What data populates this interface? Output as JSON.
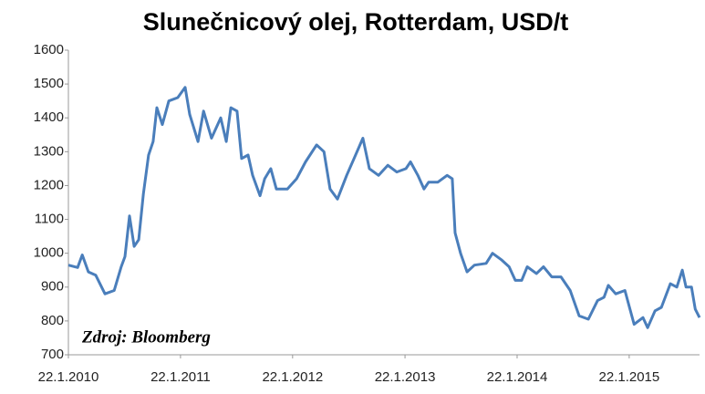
{
  "chart_data": {
    "type": "line",
    "title": "Slunečnicový olej, Rotterdam, USD/t",
    "annotation": "Zdroj: Bloomberg",
    "x": [
      "2010-01-22",
      "2010-02-21",
      "2010-03-08",
      "2010-03-28",
      "2010-04-21",
      "2010-05-21",
      "2010-06-20",
      "2010-07-13",
      "2010-07-25",
      "2010-08-09",
      "2010-08-24",
      "2010-09-08",
      "2010-09-23",
      "2010-10-10",
      "2010-10-25",
      "2010-11-06",
      "2010-11-24",
      "2010-12-15",
      "2011-01-13",
      "2011-02-06",
      "2011-02-21",
      "2011-03-20",
      "2011-04-07",
      "2011-05-03",
      "2011-06-02",
      "2011-06-20",
      "2011-07-05",
      "2011-07-25",
      "2011-08-09",
      "2011-08-30",
      "2011-09-14",
      "2011-10-08",
      "2011-10-23",
      "2011-11-12",
      "2011-11-30",
      "2012-01-05",
      "2012-02-04",
      "2012-03-04",
      "2012-04-09",
      "2012-05-03",
      "2012-05-23",
      "2012-06-16",
      "2012-07-16",
      "2012-08-09",
      "2012-09-07",
      "2012-09-28",
      "2012-10-28",
      "2012-11-27",
      "2012-12-26",
      "2013-01-25",
      "2013-02-09",
      "2013-03-05",
      "2013-03-25",
      "2013-04-09",
      "2013-05-09",
      "2013-06-08",
      "2013-06-25",
      "2013-07-04",
      "2013-07-22",
      "2013-08-12",
      "2013-09-05",
      "2013-10-13",
      "2013-11-03",
      "2013-12-03",
      "2013-12-27",
      "2014-01-16",
      "2014-02-06",
      "2014-02-24",
      "2014-03-26",
      "2014-04-18",
      "2014-05-15",
      "2014-06-14",
      "2014-07-14",
      "2014-08-12",
      "2014-09-11",
      "2014-10-11",
      "2014-11-01",
      "2014-11-15",
      "2014-12-09",
      "2015-01-08",
      "2015-01-23",
      "2015-02-07",
      "2015-03-08",
      "2015-03-23",
      "2015-04-16",
      "2015-05-07",
      "2015-06-05",
      "2015-06-26",
      "2015-07-14",
      "2015-07-26",
      "2015-08-13",
      "2015-08-25",
      "2015-09-08"
    ],
    "values": [
      965,
      958,
      995,
      945,
      935,
      880,
      890,
      960,
      990,
      1110,
      1020,
      1040,
      1175,
      1290,
      1330,
      1430,
      1380,
      1450,
      1460,
      1490,
      1410,
      1330,
      1420,
      1340,
      1400,
      1330,
      1430,
      1420,
      1280,
      1290,
      1230,
      1170,
      1220,
      1250,
      1190,
      1190,
      1220,
      1270,
      1320,
      1300,
      1190,
      1160,
      1230,
      1280,
      1340,
      1250,
      1230,
      1260,
      1240,
      1250,
      1270,
      1230,
      1190,
      1210,
      1210,
      1230,
      1220,
      1060,
      1000,
      945,
      965,
      970,
      1000,
      980,
      960,
      920,
      920,
      960,
      940,
      960,
      930,
      930,
      890,
      815,
      805,
      860,
      870,
      905,
      880,
      890,
      840,
      790,
      810,
      780,
      830,
      840,
      910,
      900,
      950,
      900,
      900,
      835,
      810
    ],
    "color": "#4a7ebb",
    "xlim": [
      "2010-01-22",
      "2015-09-08"
    ],
    "xticks": [
      {
        "value": "2010-01-22",
        "label": "22.1.2010"
      },
      {
        "value": "2011-01-22",
        "label": "22.1.2011"
      },
      {
        "value": "2012-01-22",
        "label": "22.1.2012"
      },
      {
        "value": "2013-01-22",
        "label": "22.1.2013"
      },
      {
        "value": "2014-01-22",
        "label": "22.1.2014"
      },
      {
        "value": "2015-01-22",
        "label": "22.1.2015"
      }
    ],
    "ylim": [
      700,
      1600
    ],
    "yticks": [
      700,
      800,
      900,
      1000,
      1100,
      1200,
      1300,
      1400,
      1500,
      1600
    ],
    "grid": false
  }
}
